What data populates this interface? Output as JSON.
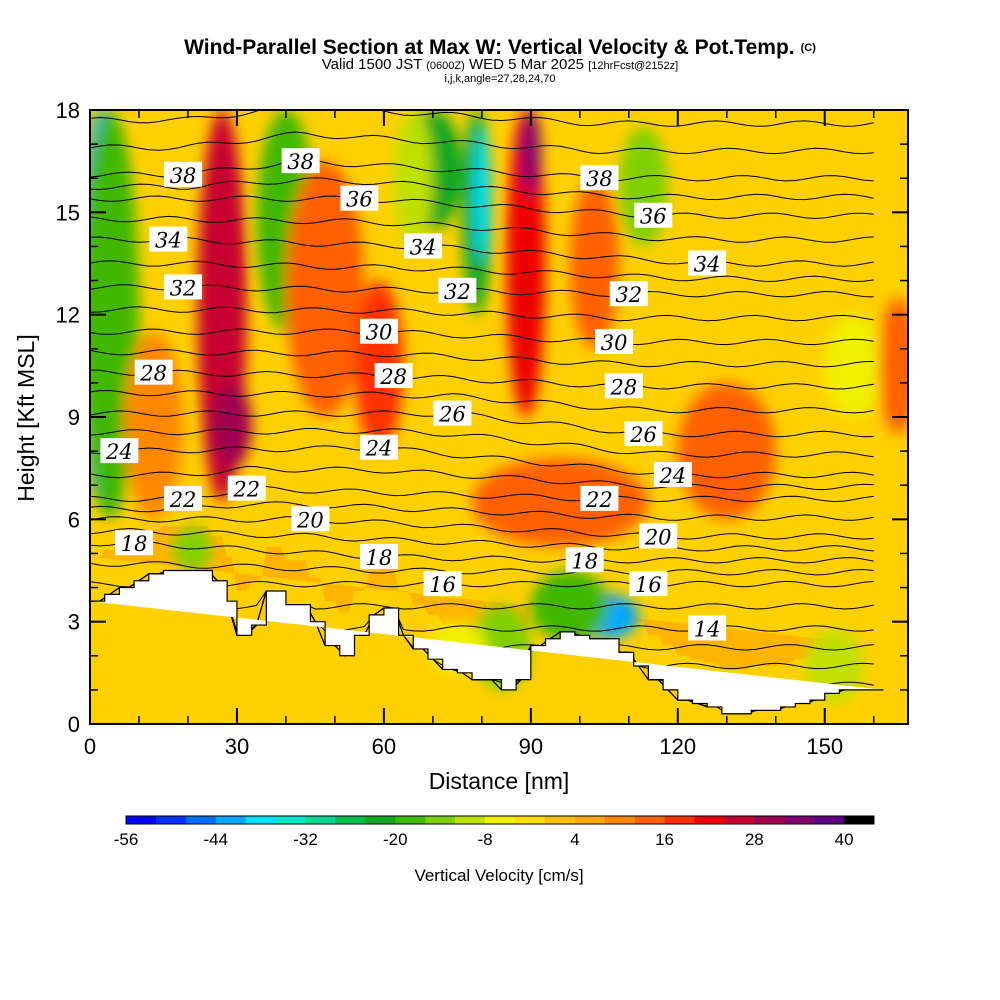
{
  "header": {
    "title": "Wind-Parallel Section at Max W: Vertical Velocity & Pot.Temp.",
    "title_unit": "(C)",
    "valid_text": "Valid 1500 JST",
    "valid_zulu": "(0600Z)",
    "valid_date": "WED 5 Mar 2025",
    "forecast_info": "[12hrFcst@2152z]",
    "index_info": "i,j,k,angle=27,28,24,70"
  },
  "colors": {
    "terrain": "#ffffff",
    "contour": "#000000",
    "colorbar": [
      "#0000ff",
      "#0030ff",
      "#0070ff",
      "#00a8ff",
      "#00e0ff",
      "#00e8c8",
      "#00d890",
      "#00c050",
      "#10a820",
      "#40b800",
      "#80d000",
      "#c0e000",
      "#f0f000",
      "#ffdc00",
      "#ffc000",
      "#ffa800",
      "#ff8800",
      "#ff6000",
      "#ff3000",
      "#ee0000",
      "#c80030",
      "#a00050",
      "#800070",
      "#600080"
    ]
  },
  "chart_data": {
    "type": "heatmap",
    "xlabel": "Distance [nm]",
    "ylabel": "Height [Kft MSL]",
    "xlim": [
      0,
      167
    ],
    "ylim": [
      0,
      18
    ],
    "x_ticks": [
      "0",
      "30",
      "60",
      "90",
      "120",
      "150"
    ],
    "y_ticks": [
      "0",
      "3",
      "6",
      "9",
      "12",
      "15",
      "18"
    ],
    "colorbar": {
      "title": "Vertical Velocity [cm/s]",
      "min": -56,
      "max": 44,
      "step": 4,
      "tick_labels": [
        "-56",
        "-44",
        "-32",
        "-20",
        "-8",
        "4",
        "16",
        "28",
        "40"
      ]
    },
    "terrain_profile": {
      "x": [
        0,
        3,
        3,
        6,
        6,
        9,
        9,
        12,
        12,
        15,
        15,
        25,
        25,
        28,
        28,
        30,
        30,
        33,
        33,
        36,
        36,
        40,
        40,
        45,
        45,
        48,
        48,
        51,
        51,
        54,
        54,
        57,
        57,
        60,
        60,
        63,
        63,
        66,
        66,
        69,
        69,
        72,
        72,
        75,
        75,
        78,
        78,
        81,
        81,
        84,
        84,
        87,
        87,
        90,
        90,
        93,
        93,
        96,
        96,
        99,
        99,
        102,
        102,
        108,
        108,
        111,
        111,
        114,
        114,
        117,
        117,
        120,
        120,
        123,
        123,
        126,
        126,
        129,
        129,
        132,
        132,
        135,
        135,
        138,
        138,
        141,
        141,
        144,
        144,
        147,
        147,
        150,
        150,
        153,
        153,
        156,
        156,
        159,
        159,
        162,
        162,
        167
      ],
      "y": [
        3.6,
        3.6,
        3.8,
        3.8,
        4.0,
        4.0,
        4.2,
        4.2,
        4.4,
        4.4,
        4.5,
        4.5,
        4.2,
        4.2,
        3.6,
        3.6,
        2.6,
        2.6,
        2.9,
        2.9,
        3.9,
        3.9,
        3.5,
        3.5,
        3.0,
        3.0,
        2.3,
        2.3,
        2.0,
        2.0,
        2.6,
        2.6,
        3.2,
        3.2,
        3.4,
        3.4,
        2.6,
        2.6,
        2.2,
        2.2,
        1.9,
        1.9,
        1.6,
        1.6,
        1.5,
        1.5,
        1.3,
        1.3,
        1.3,
        1.3,
        1.0,
        1.0,
        1.3,
        1.3,
        2.3,
        2.3,
        2.5,
        2.5,
        2.7,
        2.7,
        2.6,
        2.6,
        2.5,
        2.5,
        2.1,
        2.1,
        1.7,
        1.7,
        1.3,
        1.3,
        1.0,
        1.0,
        0.7,
        0.7,
        0.6,
        0.6,
        0.5,
        0.5,
        0.3,
        0.3,
        0.3,
        0.3,
        0.4,
        0.4,
        0.4,
        0.4,
        0.5,
        0.5,
        0.6,
        0.6,
        0.7,
        0.7,
        0.9,
        0.9,
        1.0,
        1.0,
        1.0,
        1.0,
        1.0,
        1.0
      ]
    },
    "vertical_velocity_features": [
      {
        "x": 2,
        "x_halfwidth": 4,
        "ymin": 6.5,
        "ymax": 18,
        "value": -44
      },
      {
        "x": 4,
        "x_halfwidth": 6,
        "ymin": 6.0,
        "ymax": 18,
        "value": -18
      },
      {
        "x": 27,
        "x_halfwidth": 5,
        "ymin": 6.5,
        "ymax": 18,
        "value": 24
      },
      {
        "x": 29,
        "x_halfwidth": 4,
        "ymin": 7.5,
        "ymax": 10,
        "value": 30
      },
      {
        "x": 40,
        "x_halfwidth": 6,
        "ymin": 11.5,
        "ymax": 18,
        "value": -20
      },
      {
        "x": 13,
        "x_halfwidth": 6,
        "ymin": 6.0,
        "ymax": 11.5,
        "value": 8
      },
      {
        "x": 48,
        "x_halfwidth": 8,
        "ymin": 9.0,
        "ymax": 16.5,
        "value": 14
      },
      {
        "x": 59,
        "x_halfwidth": 5,
        "ymin": 8.0,
        "ymax": 13.0,
        "value": 16
      },
      {
        "x": 70,
        "x_halfwidth": 6,
        "ymin": 14.5,
        "ymax": 18,
        "value": -24
      },
      {
        "x": 66,
        "x_halfwidth": 4,
        "ymin": 14.0,
        "ymax": 18,
        "value": -12
      },
      {
        "x": 79,
        "x_halfwidth": 3,
        "ymin": 12.0,
        "ymax": 18,
        "value": -24
      },
      {
        "x": 80,
        "x_halfwidth": 1.5,
        "ymin": 13.5,
        "ymax": 17.5,
        "value": -38
      },
      {
        "x": 89,
        "x_halfwidth": 4,
        "ymin": 9.0,
        "ymax": 18,
        "value": 20
      },
      {
        "x": 90,
        "x_halfwidth": 2,
        "ymin": 15.5,
        "ymax": 18,
        "value": 32
      },
      {
        "x": 103,
        "x_halfwidth": 5,
        "ymin": 11.0,
        "ymax": 16.0,
        "value": 14
      },
      {
        "x": 113,
        "x_halfwidth": 5,
        "ymin": 14.0,
        "ymax": 17.5,
        "value": -14
      },
      {
        "x": 156,
        "x_halfwidth": 6,
        "ymin": 9.0,
        "ymax": 12.0,
        "value": -6
      },
      {
        "x": 96,
        "x_halfwidth": 18,
        "ymin": 5.2,
        "ymax": 7.8,
        "value": 14
      },
      {
        "x": 106,
        "x_halfwidth": 6,
        "ymin": 2.5,
        "ymax": 3.8,
        "value": -44
      },
      {
        "x": 98,
        "x_halfwidth": 8,
        "ymin": 2.4,
        "ymax": 4.5,
        "value": -18
      },
      {
        "x": 84,
        "x_halfwidth": 6,
        "ymin": 1.0,
        "ymax": 3.5,
        "value": -16
      },
      {
        "x": 75,
        "x_halfwidth": 6,
        "ymin": 1.5,
        "ymax": 3.0,
        "value": -8
      },
      {
        "x": 21,
        "x_halfwidth": 4,
        "ymin": 4.5,
        "ymax": 5.8,
        "value": -14
      },
      {
        "x": 152,
        "x_halfwidth": 6,
        "ymin": 0.6,
        "ymax": 2.8,
        "value": -10
      },
      {
        "x": 130,
        "x_halfwidth": 10,
        "ymin": 6.0,
        "ymax": 10.0,
        "value": 12
      },
      {
        "x": 165,
        "x_halfwidth": 4,
        "ymin": 8.5,
        "ymax": 12.5,
        "value": 14
      }
    ],
    "potential_temperature_labels": [
      {
        "text": "38",
        "x": 19,
        "y": 16.1
      },
      {
        "text": "38",
        "x": 43,
        "y": 16.5
      },
      {
        "text": "36",
        "x": 55,
        "y": 15.4
      },
      {
        "text": "38",
        "x": 104,
        "y": 16.0
      },
      {
        "text": "36",
        "x": 115,
        "y": 14.9
      },
      {
        "text": "34",
        "x": 16,
        "y": 14.2
      },
      {
        "text": "34",
        "x": 68,
        "y": 14.0
      },
      {
        "text": "34",
        "x": 126,
        "y": 13.5
      },
      {
        "text": "32",
        "x": 19,
        "y": 12.8
      },
      {
        "text": "32",
        "x": 75,
        "y": 12.7
      },
      {
        "text": "32",
        "x": 110,
        "y": 12.6
      },
      {
        "text": "30",
        "x": 59,
        "y": 11.5
      },
      {
        "text": "30",
        "x": 107,
        "y": 11.2
      },
      {
        "text": "28",
        "x": 13,
        "y": 10.3
      },
      {
        "text": "28",
        "x": 62,
        "y": 10.2
      },
      {
        "text": "28",
        "x": 109,
        "y": 9.9
      },
      {
        "text": "26",
        "x": 74,
        "y": 9.1
      },
      {
        "text": "26",
        "x": 113,
        "y": 8.5
      },
      {
        "text": "24",
        "x": 6,
        "y": 8.0
      },
      {
        "text": "24",
        "x": 59,
        "y": 8.1
      },
      {
        "text": "24",
        "x": 119,
        "y": 7.3
      },
      {
        "text": "22",
        "x": 19,
        "y": 6.6
      },
      {
        "text": "22",
        "x": 32,
        "y": 6.9
      },
      {
        "text": "22",
        "x": 104,
        "y": 6.6
      },
      {
        "text": "20",
        "x": 45,
        "y": 6.0
      },
      {
        "text": "20",
        "x": 116,
        "y": 5.5
      },
      {
        "text": "18",
        "x": 9,
        "y": 5.3
      },
      {
        "text": "18",
        "x": 59,
        "y": 4.9
      },
      {
        "text": "18",
        "x": 101,
        "y": 4.8
      },
      {
        "text": "16",
        "x": 72,
        "y": 4.1
      },
      {
        "text": "16",
        "x": 114,
        "y": 4.1
      },
      {
        "text": "14",
        "x": 126,
        "y": 2.8
      }
    ]
  }
}
